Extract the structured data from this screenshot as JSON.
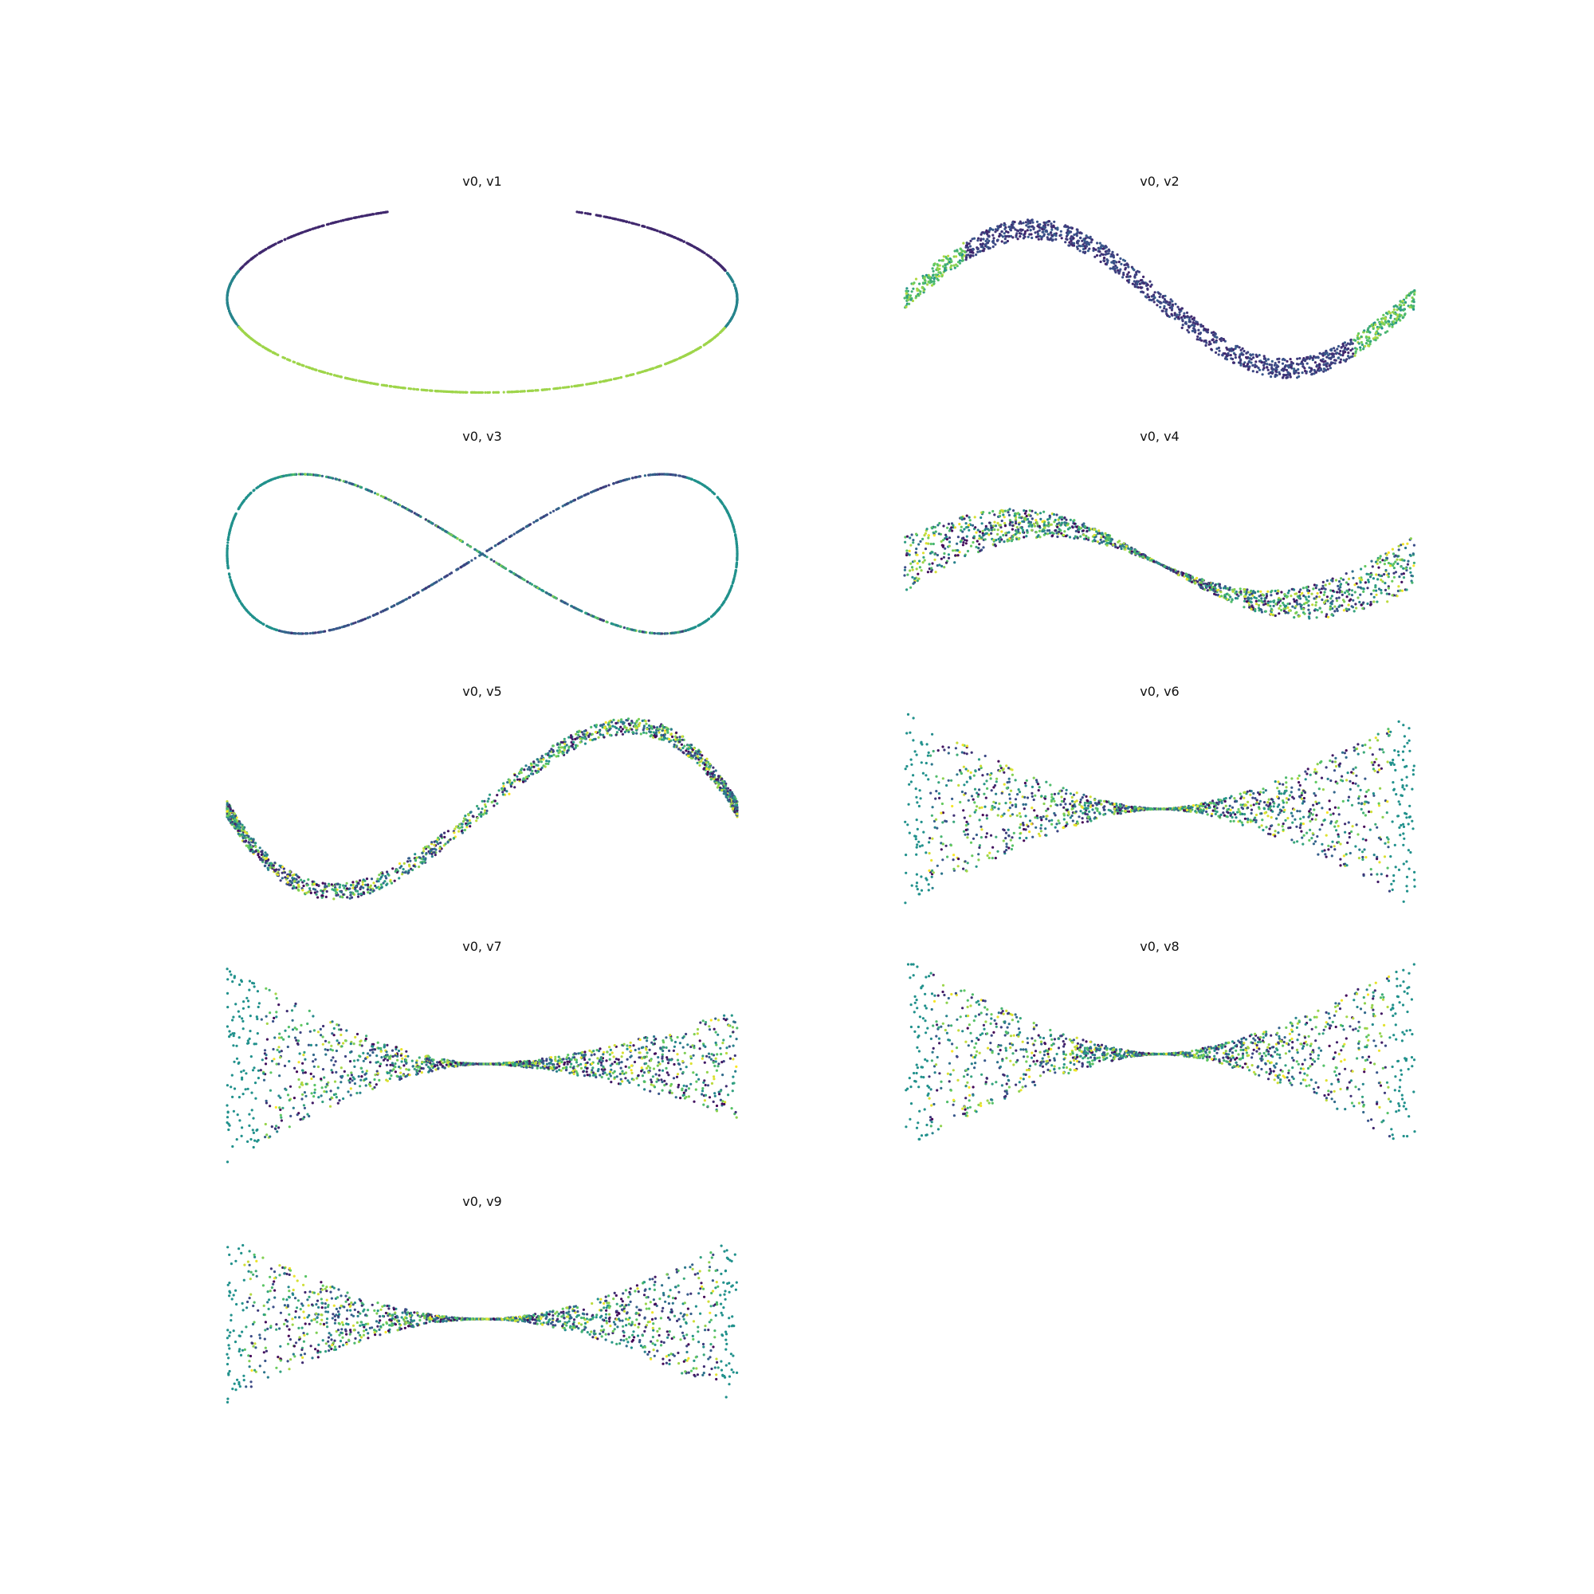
{
  "chart_data": [
    {
      "type": "scatter",
      "title": "v0, v1",
      "xvar": "v0",
      "yvar": "v1",
      "colormap": "viridis",
      "axes_visible": false,
      "shape": "ellipse open at bottom, yellow ends at bottom gap"
    },
    {
      "type": "scatter",
      "title": "v0, v2",
      "xvar": "v0",
      "yvar": "v2",
      "colormap": "viridis",
      "axes_visible": false,
      "shape": "S-curve with teal loops at both ends, yellow tails at top-left and bottom-right"
    },
    {
      "type": "scatter",
      "title": "v0, v3",
      "xvar": "v0",
      "yvar": "v3",
      "colormap": "viridis",
      "axes_visible": false,
      "shape": "figure-eight, yellow tails at left-lower and right-upper"
    },
    {
      "type": "scatter",
      "title": "v0, v4",
      "xvar": "v0",
      "yvar": "v4",
      "colormap": "viridis",
      "axes_visible": false,
      "shape": "diffuse S-band"
    },
    {
      "type": "scatter",
      "title": "v0, v5",
      "xvar": "v0",
      "yvar": "v5",
      "colormap": "viridis",
      "axes_visible": false,
      "shape": "two lobes joined in middle"
    },
    {
      "type": "scatter",
      "title": "v0, v6",
      "xvar": "v0",
      "yvar": "v6",
      "colormap": "viridis",
      "axes_visible": false,
      "shape": "bow-tie"
    },
    {
      "type": "scatter",
      "title": "v0, v7",
      "xvar": "v0",
      "yvar": "v7",
      "colormap": "viridis",
      "axes_visible": false,
      "shape": "bow-tie, wider left"
    },
    {
      "type": "scatter",
      "title": "v0, v8",
      "xvar": "v0",
      "yvar": "v8",
      "colormap": "viridis",
      "axes_visible": false,
      "shape": "bow-tie"
    },
    {
      "type": "scatter",
      "title": "v0, v9",
      "xvar": "v0",
      "yvar": "v9",
      "colormap": "viridis",
      "axes_visible": false,
      "shape": "bow-tie, narrow"
    }
  ],
  "colors": {
    "viridis": [
      "#440154",
      "#3b528b",
      "#21918c",
      "#5ec962",
      "#fde725"
    ]
  }
}
